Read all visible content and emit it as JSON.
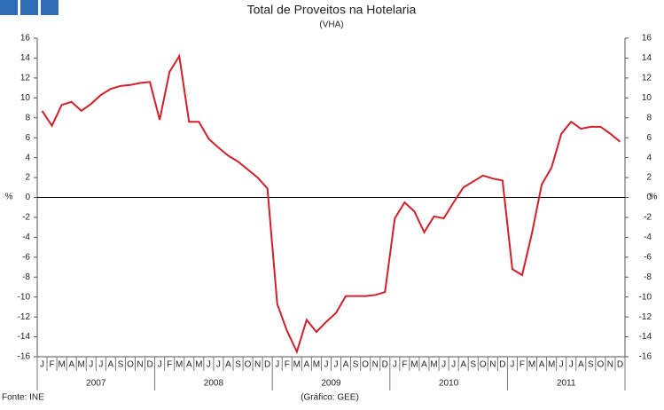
{
  "chart_data": {
    "type": "line",
    "title": "Total de Proveitos na Hotelaria",
    "subtitle": "(VHA)",
    "y_label": "%",
    "y2_label": "%",
    "categories": [
      "J",
      "F",
      "M",
      "A",
      "M",
      "J",
      "J",
      "A",
      "S",
      "O",
      "N",
      "D",
      "J",
      "F",
      "M",
      "A",
      "M",
      "J",
      "J",
      "A",
      "S",
      "O",
      "N",
      "D",
      "J",
      "F",
      "M",
      "A",
      "M",
      "J",
      "J",
      "A",
      "S",
      "O",
      "N",
      "D",
      "J",
      "F",
      "M",
      "A",
      "M",
      "J",
      "J",
      "A",
      "S",
      "O",
      "N",
      "D",
      "J",
      "F",
      "M",
      "A",
      "M",
      "J",
      "J",
      "A",
      "S",
      "O",
      "N",
      "D"
    ],
    "year_labels": [
      "2007",
      "2008",
      "2009",
      "2010",
      "2011"
    ],
    "series": [
      {
        "color": "#d0202a",
        "values": [
          8.7,
          7.2,
          9.3,
          9.6,
          8.7,
          9.4,
          10.3,
          10.9,
          11.2,
          11.3,
          11.5,
          11.6,
          7.8,
          12.6,
          14.2,
          7.6,
          7.6,
          5.9,
          5.0,
          4.2,
          3.6,
          2.8,
          2.0,
          0.9,
          -10.7,
          -13.4,
          -15.5,
          -12.3,
          -13.5,
          -12.5,
          -11.6,
          -9.9,
          -9.9,
          -9.9,
          -9.8,
          -9.5,
          -2.1,
          -0.5,
          -1.4,
          -3.5,
          -1.9,
          -2.1,
          -0.5,
          1.0,
          1.6,
          2.2,
          1.9,
          1.7,
          -7.2,
          -7.8,
          -3.6,
          1.3,
          3.0,
          6.4,
          7.6,
          6.9,
          7.1,
          7.1,
          6.4,
          5.6
        ]
      }
    ],
    "ylim": [
      -16,
      16
    ],
    "yticks": [
      -16,
      -14,
      -12,
      -10,
      -8,
      -6,
      -4,
      -2,
      0,
      2,
      4,
      6,
      8,
      10,
      12,
      14,
      16
    ],
    "y2lim": [
      -16,
      16
    ],
    "y2ticks": [
      -16,
      -14,
      -12,
      -10,
      -8,
      -6,
      -4,
      -2,
      0,
      2,
      4,
      6,
      8,
      10,
      12,
      14,
      16
    ],
    "grid": false,
    "source": "Fonte: INE",
    "credit": "(Gráfico: GEE)"
  }
}
